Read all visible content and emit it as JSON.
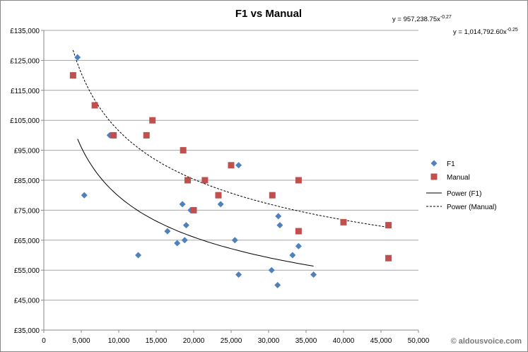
{
  "chart_data": {
    "type": "scatter",
    "title": "F1 vs Manual",
    "xlabel": "",
    "ylabel": "",
    "xlim": [
      0,
      50000
    ],
    "ylim": [
      35000,
      135000
    ],
    "x_ticks": [
      "0",
      "5,000",
      "10,000",
      "15,000",
      "20,000",
      "25,000",
      "30,000",
      "35,000",
      "40,000",
      "45,000",
      "50,000"
    ],
    "y_ticks": [
      "£35,000",
      "£45,000",
      "£55,000",
      "£65,000",
      "£75,000",
      "£85,000",
      "£95,000",
      "£105,000",
      "£115,000",
      "£125,000",
      "£135,000"
    ],
    "grid": "horizontal",
    "legend_position": "right",
    "series": [
      {
        "name": "F1",
        "marker": "diamond",
        "color": "#4f81bd",
        "points": [
          [
            4500,
            126000
          ],
          [
            5400,
            80000
          ],
          [
            8800,
            100000
          ],
          [
            12600,
            60000
          ],
          [
            16500,
            68000
          ],
          [
            17800,
            64000
          ],
          [
            18500,
            77000
          ],
          [
            18800,
            65000
          ],
          [
            19000,
            70000
          ],
          [
            19600,
            75000
          ],
          [
            23600,
            77000
          ],
          [
            25500,
            65000
          ],
          [
            26000,
            90000
          ],
          [
            26000,
            53500
          ],
          [
            30400,
            55000
          ],
          [
            31200,
            50000
          ],
          [
            31300,
            73000
          ],
          [
            31500,
            70000
          ],
          [
            33200,
            60000
          ],
          [
            34000,
            63000
          ],
          [
            36000,
            53500
          ]
        ]
      },
      {
        "name": "Manual",
        "marker": "square",
        "color": "#c0504d",
        "points": [
          [
            3900,
            120000
          ],
          [
            6800,
            110000
          ],
          [
            9300,
            100000
          ],
          [
            13700,
            100000
          ],
          [
            14500,
            105000
          ],
          [
            18600,
            95000
          ],
          [
            19200,
            85000
          ],
          [
            20000,
            75000
          ],
          [
            21500,
            85000
          ],
          [
            23300,
            80000
          ],
          [
            25000,
            90000
          ],
          [
            30500,
            80000
          ],
          [
            34000,
            85000
          ],
          [
            34000,
            68000
          ],
          [
            40000,
            71000
          ],
          [
            46000,
            70000
          ],
          [
            46000,
            59000
          ]
        ]
      }
    ],
    "trendlines": [
      {
        "name": "Power (F1)",
        "type": "power",
        "a": 957238.75,
        "b": -0.27,
        "x_range": [
          4500,
          36000
        ],
        "style": "solid",
        "equation": "y = 957,238.75x",
        "exponent": "-0.27"
      },
      {
        "name": "Power (Manual)",
        "type": "power",
        "a": 1014792.6,
        "b": -0.25,
        "x_range": [
          3900,
          46000
        ],
        "style": "dashed",
        "equation": "y = 1,014,792.60x",
        "exponent": "-0.25"
      }
    ]
  },
  "watermark": "© aldousvoice.com"
}
